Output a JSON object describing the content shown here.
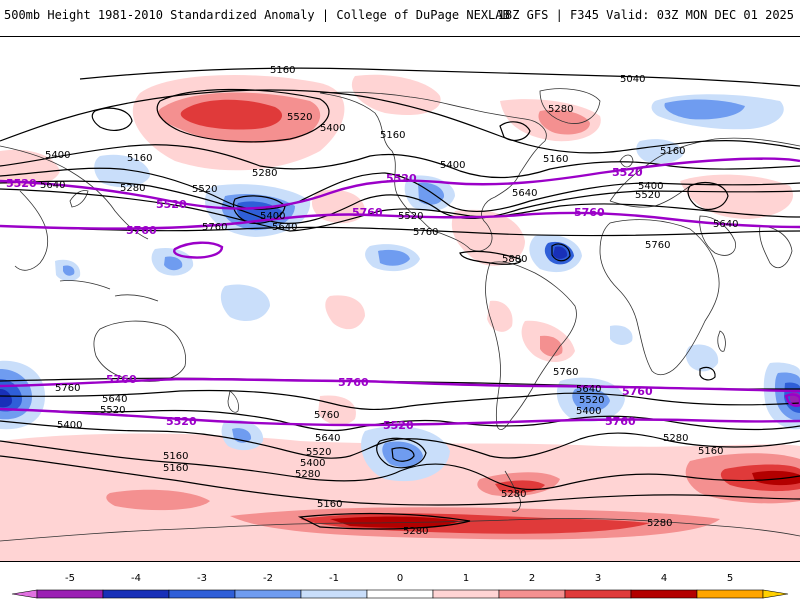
{
  "header": {
    "title_left": "500mb Height 1981-2010 Standardized Anomaly | College of DuPage NEXLAB",
    "title_right": "18Z GFS | F345 Valid: 03Z MON DEC 01 2025"
  },
  "contour_labels": {
    "l5040_a": "5040",
    "l5160_a": "5160",
    "l5160_b": "5160",
    "l5160_c": "5160",
    "l5160_d": "5160",
    "l5160_e": "5160",
    "l5160_f": "5160",
    "l5160_g": "5160",
    "l5160_h": "5160",
    "l5160_i": "5160",
    "l5280_a": "5280",
    "l5280_b": "5280",
    "l5280_c": "5280",
    "l5280_d": "5280",
    "l5280_e": "5280",
    "l5280_f": "5280",
    "l5280_g": "5280",
    "l5280_h": "5280",
    "l5400_a": "5400",
    "l5400_b": "5400",
    "l5400_c": "5400",
    "l5400_d": "5400",
    "l5400_e": "5400",
    "l5400_f": "5400",
    "l5400_g": "5400",
    "l5400_h": "5400",
    "l5520_a": "5520",
    "l5520_b": "5520",
    "l5520_c": "5520",
    "l5520_d": "5520",
    "l5520_e": "5520",
    "l5520_f": "5520",
    "l5520_g": "5520",
    "l5640_a": "5640",
    "l5640_b": "5640",
    "l5640_c": "5640",
    "l5640_d": "5640",
    "l5640_e": "5640",
    "l5640_f": "5640",
    "l5640_g": "5640",
    "l5760_a": "5760",
    "l5760_b": "5760",
    "l5760_c": "5760",
    "l5760_d": "5760",
    "l5760_e": "5760",
    "l5760_f": "5760",
    "l5880_a": "5880",
    "p5520_a": "5520",
    "p5520_b": "5520",
    "p5520_c": "5520",
    "p5520_d": "5520",
    "p5520_e": "5520",
    "p5520_f": "5520",
    "p5760_a": "5760",
    "p5760_b": "5760",
    "p5760_c": "5760",
    "p5760_d": "5760",
    "p5760_e": "5760",
    "p5760_f": "5760",
    "p5760_g": "5760"
  },
  "legend": {
    "ticks": [
      "-5",
      "-4",
      "-3",
      "-2",
      "-1",
      "0",
      "1",
      "2",
      "3",
      "4",
      "5"
    ],
    "colors": [
      "#9b1fb3",
      "#1830b8",
      "#2f5fd8",
      "#6f9cf0",
      "#c9defa",
      "#ffffff",
      "#ffd4d4",
      "#f49090",
      "#e03a3a",
      "#b30000",
      "#ffa500"
    ],
    "end_left_color": "#e070e0",
    "end_right_color": "#ffd000"
  },
  "colors": {
    "purple_contour": "#9b00c8",
    "black_contour": "#000000"
  }
}
